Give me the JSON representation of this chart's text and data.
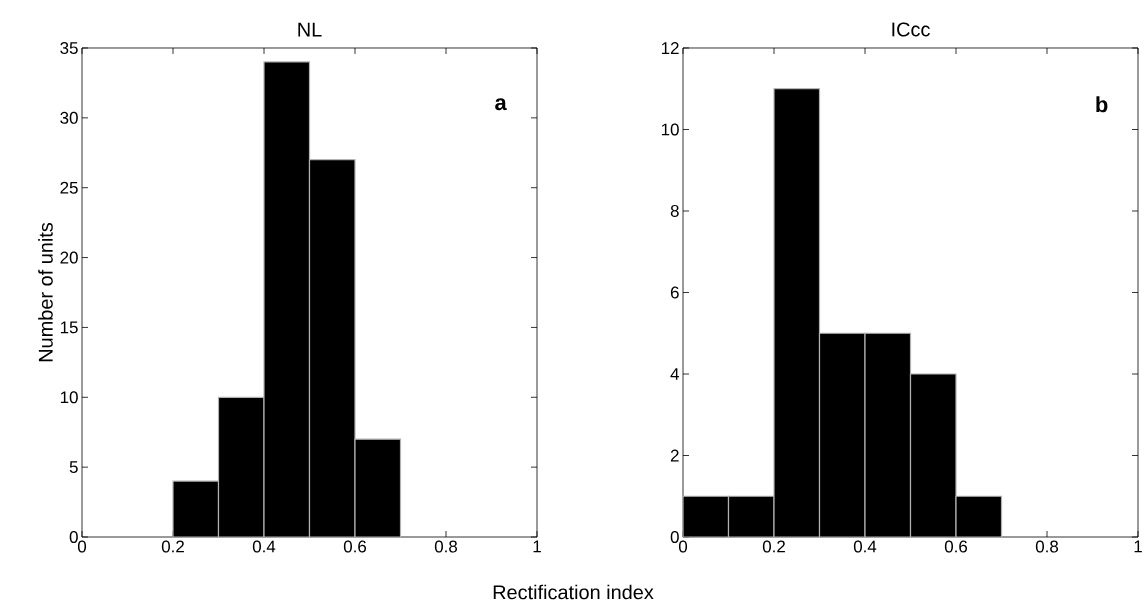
{
  "chart_data": [
    {
      "type": "histogram",
      "title": "NL",
      "xlabel": "Rectification index",
      "ylabel": "Number of units",
      "annotations": [
        "a"
      ],
      "color": "#000000",
      "bins": [
        0,
        0.1,
        0.2,
        0.3,
        0.4,
        0.5,
        0.6,
        0.7,
        0.8,
        0.9,
        1
      ],
      "values": [
        0,
        0,
        4,
        10,
        34,
        27,
        7,
        0,
        0,
        0
      ],
      "xlim": [
        0,
        1
      ],
      "ylim": [
        0,
        35
      ],
      "xticks": [
        0,
        0.2,
        0.4,
        0.6,
        0.8,
        1
      ],
      "yticks": [
        0,
        5,
        10,
        15,
        20,
        25,
        30,
        35
      ],
      "grid": false
    },
    {
      "type": "histogram",
      "title": "ICcc",
      "annotations": [
        "b"
      ],
      "color": "#000000",
      "bins": [
        0,
        0.1,
        0.2,
        0.3,
        0.4,
        0.5,
        0.6,
        0.7,
        0.8,
        0.9,
        1
      ],
      "values": [
        1,
        1,
        11,
        5,
        5,
        4,
        1,
        0,
        0,
        0
      ],
      "xlim": [
        0,
        1
      ],
      "ylim": [
        0,
        12
      ],
      "xticks": [
        0,
        0.2,
        0.4,
        0.6,
        0.8,
        1
      ],
      "yticks": [
        0,
        2,
        4,
        6,
        8,
        10,
        12
      ],
      "grid": false
    }
  ]
}
